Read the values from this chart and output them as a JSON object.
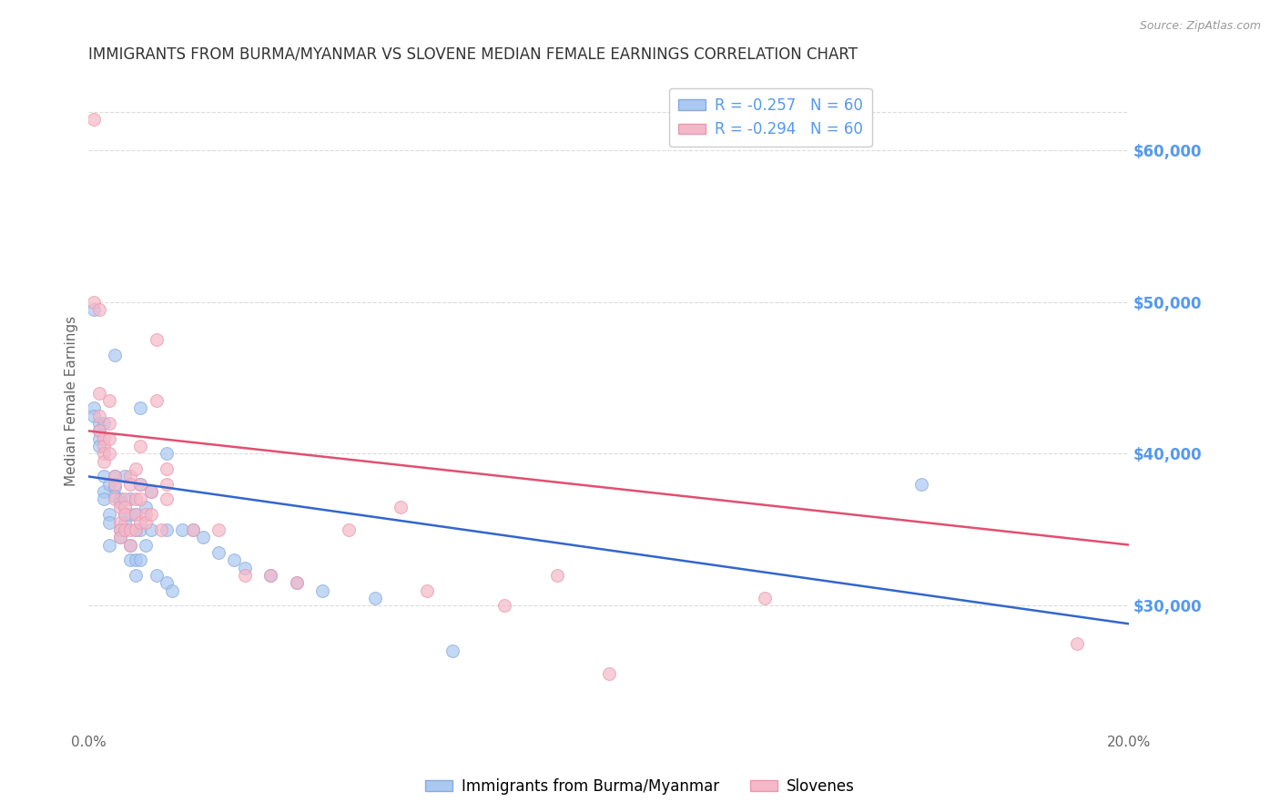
{
  "title": "IMMIGRANTS FROM BURMA/MYANMAR VS SLOVENE MEDIAN FEMALE EARNINGS CORRELATION CHART",
  "source": "Source: ZipAtlas.com",
  "ylabel": "Median Female Earnings",
  "xlim": [
    0.0,
    0.2
  ],
  "ylim": [
    22000,
    65000
  ],
  "yticks_right": [
    30000,
    40000,
    50000,
    60000
  ],
  "ytick_labels_right": [
    "$30,000",
    "$40,000",
    "$50,000",
    "$60,000"
  ],
  "background_color": "#ffffff",
  "grid_color": "#cccccc",
  "blue_fill": "#aac8f0",
  "blue_edge": "#88aadd",
  "pink_fill": "#f5b8c8",
  "pink_edge": "#e898b0",
  "blue_line_color": "#3366cc",
  "pink_line_color": "#e05070",
  "r_blue": -0.257,
  "r_pink": -0.294,
  "n_blue": 60,
  "n_pink": 60,
  "legend_label_blue": "Immigrants from Burma/Myanmar",
  "legend_label_pink": "Slovenes",
  "title_color": "#333333",
  "source_color": "#999999",
  "right_tick_color": "#5599ee",
  "blue_regression": [
    0.0,
    38500,
    0.2,
    28800
  ],
  "pink_regression": [
    0.0,
    41500,
    0.2,
    34000
  ],
  "blue_scatter": [
    [
      0.001,
      49500
    ],
    [
      0.001,
      43000
    ],
    [
      0.001,
      42500
    ],
    [
      0.002,
      42000
    ],
    [
      0.002,
      41500
    ],
    [
      0.002,
      41000
    ],
    [
      0.002,
      40500
    ],
    [
      0.003,
      42000
    ],
    [
      0.003,
      38500
    ],
    [
      0.003,
      37500
    ],
    [
      0.003,
      37000
    ],
    [
      0.004,
      38000
    ],
    [
      0.004,
      36000
    ],
    [
      0.004,
      35500
    ],
    [
      0.004,
      34000
    ],
    [
      0.005,
      46500
    ],
    [
      0.005,
      38500
    ],
    [
      0.005,
      37800
    ],
    [
      0.005,
      37200
    ],
    [
      0.006,
      37000
    ],
    [
      0.006,
      36800
    ],
    [
      0.006,
      35000
    ],
    [
      0.006,
      34500
    ],
    [
      0.007,
      38500
    ],
    [
      0.007,
      36000
    ],
    [
      0.007,
      35500
    ],
    [
      0.007,
      35000
    ],
    [
      0.008,
      37000
    ],
    [
      0.008,
      36000
    ],
    [
      0.008,
      34000
    ],
    [
      0.008,
      33000
    ],
    [
      0.009,
      36000
    ],
    [
      0.009,
      35000
    ],
    [
      0.009,
      33000
    ],
    [
      0.009,
      32000
    ],
    [
      0.01,
      43000
    ],
    [
      0.01,
      38000
    ],
    [
      0.01,
      35000
    ],
    [
      0.01,
      33000
    ],
    [
      0.011,
      36500
    ],
    [
      0.011,
      34000
    ],
    [
      0.012,
      37500
    ],
    [
      0.012,
      35000
    ],
    [
      0.013,
      32000
    ],
    [
      0.015,
      40000
    ],
    [
      0.015,
      35000
    ],
    [
      0.015,
      31500
    ],
    [
      0.016,
      31000
    ],
    [
      0.018,
      35000
    ],
    [
      0.02,
      35000
    ],
    [
      0.022,
      34500
    ],
    [
      0.025,
      33500
    ],
    [
      0.028,
      33000
    ],
    [
      0.03,
      32500
    ],
    [
      0.035,
      32000
    ],
    [
      0.04,
      31500
    ],
    [
      0.045,
      31000
    ],
    [
      0.055,
      30500
    ],
    [
      0.07,
      27000
    ],
    [
      0.16,
      38000
    ]
  ],
  "pink_scatter": [
    [
      0.001,
      62000
    ],
    [
      0.001,
      50000
    ],
    [
      0.002,
      49500
    ],
    [
      0.002,
      44000
    ],
    [
      0.002,
      42500
    ],
    [
      0.002,
      41500
    ],
    [
      0.003,
      41000
    ],
    [
      0.003,
      40500
    ],
    [
      0.003,
      40000
    ],
    [
      0.003,
      39500
    ],
    [
      0.004,
      43500
    ],
    [
      0.004,
      42000
    ],
    [
      0.004,
      41000
    ],
    [
      0.004,
      40000
    ],
    [
      0.005,
      38500
    ],
    [
      0.005,
      38000
    ],
    [
      0.005,
      37000
    ],
    [
      0.006,
      36500
    ],
    [
      0.006,
      35500
    ],
    [
      0.006,
      35000
    ],
    [
      0.006,
      34500
    ],
    [
      0.007,
      37000
    ],
    [
      0.007,
      36500
    ],
    [
      0.007,
      36000
    ],
    [
      0.007,
      35000
    ],
    [
      0.008,
      38500
    ],
    [
      0.008,
      38000
    ],
    [
      0.008,
      35000
    ],
    [
      0.008,
      34000
    ],
    [
      0.009,
      39000
    ],
    [
      0.009,
      37000
    ],
    [
      0.009,
      36000
    ],
    [
      0.009,
      35000
    ],
    [
      0.01,
      40500
    ],
    [
      0.01,
      38000
    ],
    [
      0.01,
      37000
    ],
    [
      0.01,
      35500
    ],
    [
      0.011,
      36000
    ],
    [
      0.011,
      35500
    ],
    [
      0.012,
      37500
    ],
    [
      0.012,
      36000
    ],
    [
      0.013,
      47500
    ],
    [
      0.013,
      43500
    ],
    [
      0.014,
      35000
    ],
    [
      0.015,
      39000
    ],
    [
      0.015,
      38000
    ],
    [
      0.015,
      37000
    ],
    [
      0.02,
      35000
    ],
    [
      0.025,
      35000
    ],
    [
      0.03,
      32000
    ],
    [
      0.035,
      32000
    ],
    [
      0.04,
      31500
    ],
    [
      0.05,
      35000
    ],
    [
      0.06,
      36500
    ],
    [
      0.065,
      31000
    ],
    [
      0.08,
      30000
    ],
    [
      0.09,
      32000
    ],
    [
      0.1,
      25500
    ],
    [
      0.13,
      30500
    ],
    [
      0.19,
      27500
    ]
  ]
}
